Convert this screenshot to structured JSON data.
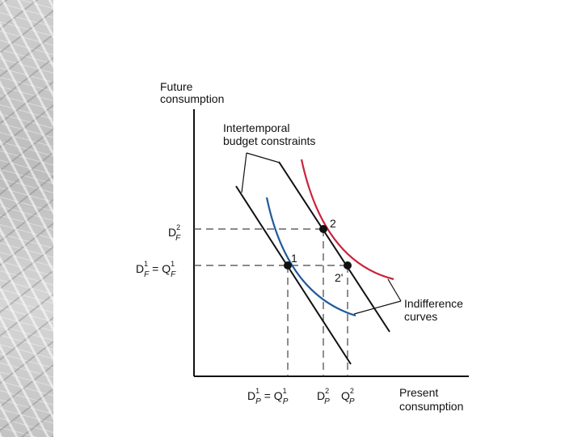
{
  "background": {
    "marble": "marble-texture"
  },
  "axes": {
    "y_label": [
      "Future",
      "consumption"
    ],
    "x_label": [
      "Present",
      "consumption"
    ]
  },
  "annotations": {
    "budget": [
      "Intertemporal",
      "budget constraints"
    ],
    "indifference": [
      "Indifference",
      "curves"
    ],
    "point1": "1",
    "point2": "2",
    "point2prime": "2'"
  },
  "y_ticks": {
    "df2": {
      "base": "D",
      "sup": "2",
      "sub": "F"
    },
    "df1": {
      "base1": "D",
      "sup1": "1",
      "sub1": "F",
      "eq": " = ",
      "base2": "Q",
      "sup2": "1",
      "sub2": "F"
    }
  },
  "x_ticks": {
    "dp1": {
      "base1": "D",
      "sup1": "1",
      "sub1": "P",
      "eq": " = ",
      "base2": "Q",
      "sup2": "1",
      "sub2": "P"
    },
    "dp2": {
      "base": "D",
      "sup": "2",
      "sub": "P"
    },
    "qp2": {
      "base": "Q",
      "sup": "2",
      "sub": "P"
    }
  },
  "colors": {
    "axis": "#111111",
    "budget": "#111111",
    "curve1": "#1f5a9a",
    "curve2": "#c8243c",
    "guide": "#444444"
  }
}
